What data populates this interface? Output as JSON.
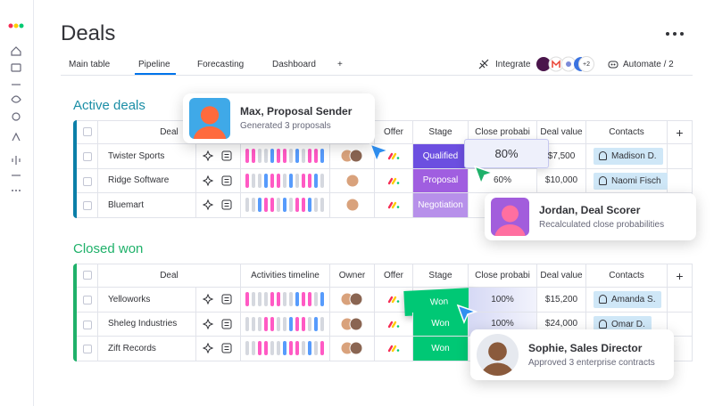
{
  "header": {
    "title": "Deals"
  },
  "tabs": [
    "Main table",
    "Pipeline",
    "Forecasting",
    "Dashboard",
    "+"
  ],
  "toolbar": {
    "integrate": "Integrate",
    "integrate_more": "+2",
    "automate": "Automate / 2"
  },
  "columns": [
    "Deal",
    "Activities timeline",
    "Owner",
    "Offer",
    "Stage",
    "Close probabi",
    "Deal value",
    "Contacts",
    "+"
  ],
  "groups": [
    {
      "title": "Active deals",
      "rows": [
        {
          "deal": "Twister Sports",
          "stage": "Qualified",
          "probability": "80%",
          "value": "$7,500",
          "contact": "Madison D."
        },
        {
          "deal": "Ridge Software",
          "stage": "Proposal",
          "probability": "60%",
          "value": "$10,000",
          "contact": "Naomi Fisch"
        },
        {
          "deal": "Bluemart",
          "stage": "Negotiation"
        }
      ]
    },
    {
      "title": "Closed won",
      "rows": [
        {
          "deal": "Yelloworks",
          "stage": "Won",
          "probability": "100%",
          "value": "$15,200",
          "contact": "Amanda S."
        },
        {
          "deal": "Sheleg Industries",
          "stage": "Won",
          "probability": "100%",
          "value": "$24,000",
          "contact": "Omar D."
        },
        {
          "deal": "Zift Records",
          "stage": "Won"
        }
      ]
    }
  ],
  "agents": [
    {
      "name": "Max, Proposal Sender",
      "action": "Generated 3 proposals"
    },
    {
      "name": "Jordan, Deal Scorer",
      "action": "Recalculated close probabilities"
    },
    {
      "name": "Sophie, Sales Director",
      "action": "Approved 3 enterprise contracts"
    }
  ]
}
